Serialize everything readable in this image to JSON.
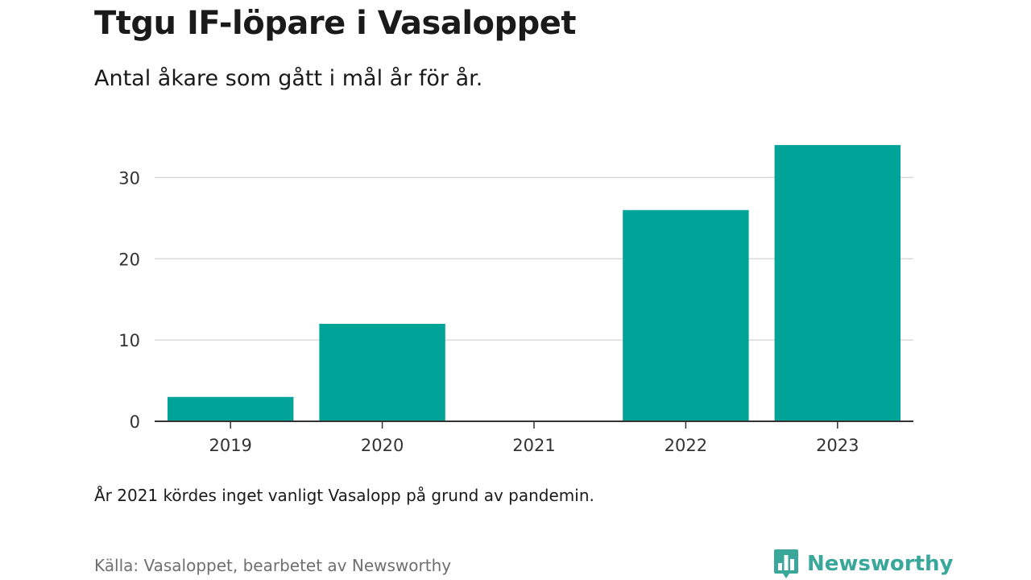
{
  "chart_data": {
    "type": "bar",
    "title": "Ttgu IF-löpare i Vasaloppet",
    "subtitle": "Antal åkare som gått i mål år för år.",
    "categories": [
      "2019",
      "2020",
      "2021",
      "2022",
      "2023"
    ],
    "values": [
      3,
      12,
      0,
      26,
      34
    ],
    "ylim": [
      0,
      35
    ],
    "yticks": [
      0,
      10,
      20,
      30
    ],
    "grid": true,
    "bar_color": "#00a398",
    "note": "År 2021 kördes inget vanligt Vasalopp på grund av pandemin."
  },
  "footer": {
    "source": "Källa: Vasaloppet, bearbetet av Newsworthy",
    "brand": "Newsworthy",
    "brand_color": "#3aa79b",
    "brand_icon": "bar-chart-bubble-icon"
  }
}
